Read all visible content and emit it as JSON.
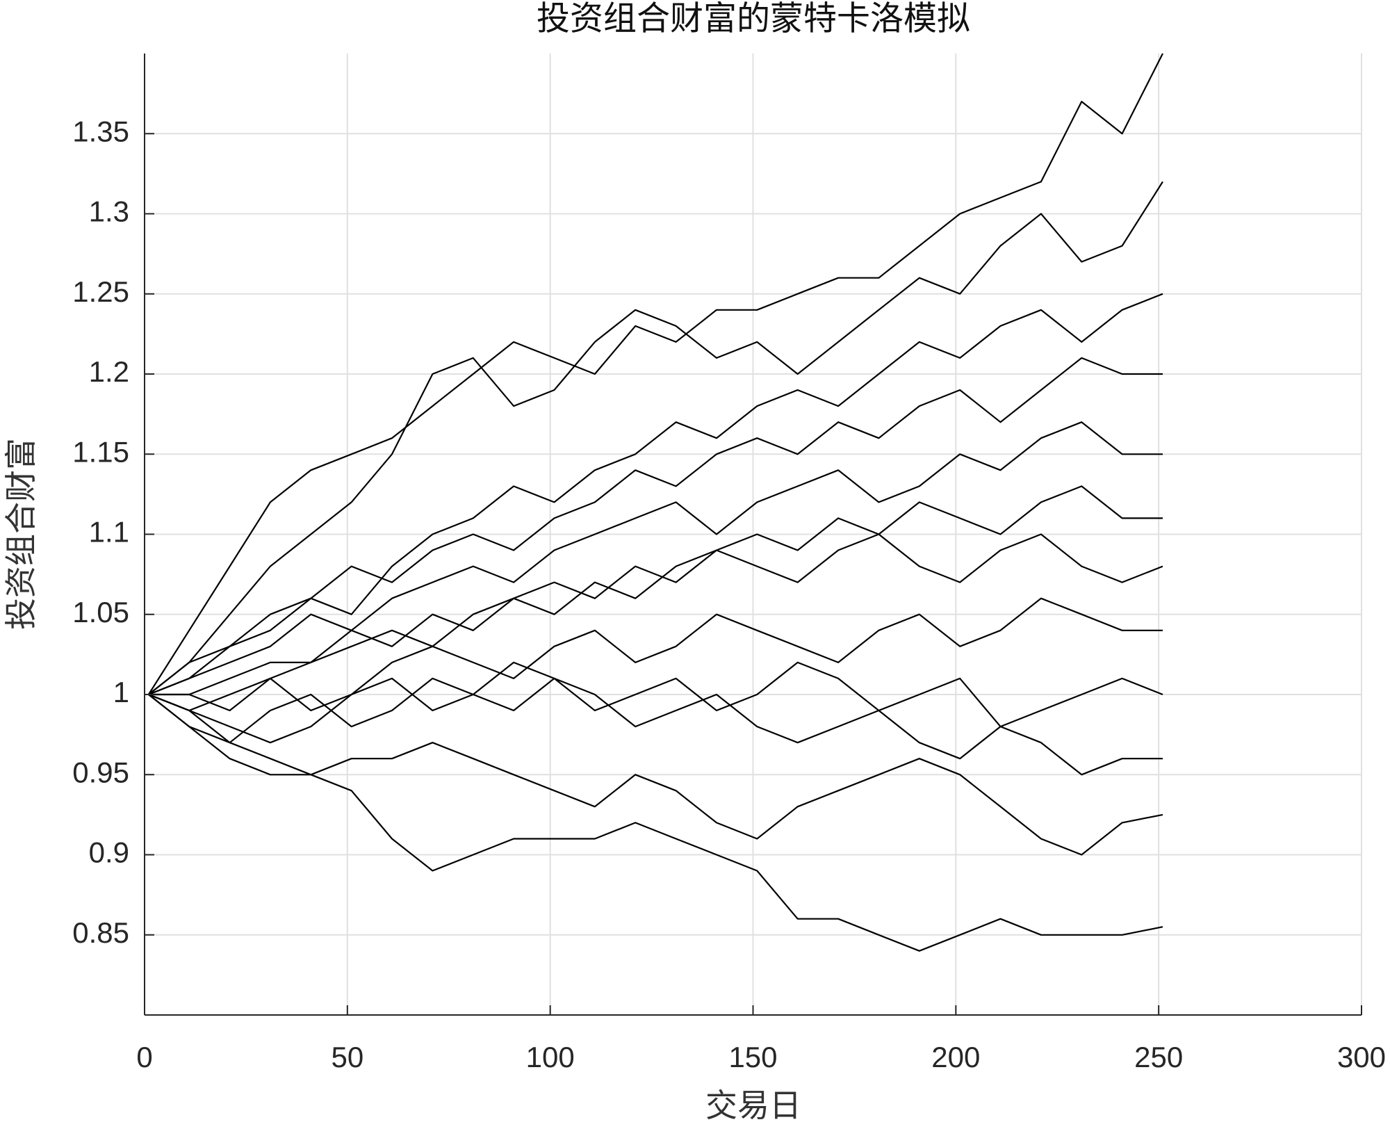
{
  "chart_data": {
    "type": "line",
    "title": "投资组合财富的蒙特卡洛模拟",
    "x_label": "交易日",
    "y_label": "投资组合财富",
    "x": [
      1,
      11,
      21,
      31,
      41,
      51,
      61,
      71,
      81,
      91,
      101,
      111,
      121,
      131,
      141,
      151,
      161,
      171,
      181,
      191,
      201,
      211,
      221,
      231,
      241,
      251
    ],
    "series": [
      {
        "color": "#000000",
        "values": [
          1,
          1.04,
          1.08,
          1.12,
          1.14,
          1.15,
          1.16,
          1.18,
          1.2,
          1.22,
          1.21,
          1.2,
          1.23,
          1.22,
          1.24,
          1.24,
          1.25,
          1.26,
          1.26,
          1.28,
          1.3,
          1.31,
          1.32,
          1.37,
          1.35,
          1.4
        ]
      },
      {
        "color": "#000000",
        "values": [
          1,
          0.99,
          0.97,
          0.96,
          0.95,
          0.94,
          0.91,
          0.89,
          0.9,
          0.91,
          0.91,
          0.91,
          0.92,
          0.91,
          0.9,
          0.89,
          0.86,
          0.86,
          0.85,
          0.84,
          0.85,
          0.86,
          0.85,
          0.85,
          0.85,
          0.855
        ]
      },
      {
        "color": "#000000",
        "values": [
          1,
          0.98,
          0.96,
          0.95,
          0.95,
          0.96,
          0.96,
          0.97,
          0.96,
          0.95,
          0.94,
          0.93,
          0.95,
          0.94,
          0.92,
          0.91,
          0.93,
          0.94,
          0.95,
          0.96,
          0.95,
          0.93,
          0.91,
          0.9,
          0.92,
          0.925
        ]
      },
      {
        "color": "#000000",
        "values": [
          1,
          1.02,
          1.05,
          1.08,
          1.1,
          1.12,
          1.15,
          1.2,
          1.21,
          1.18,
          1.19,
          1.22,
          1.24,
          1.23,
          1.21,
          1.22,
          1.2,
          1.22,
          1.24,
          1.26,
          1.25,
          1.28,
          1.3,
          1.27,
          1.28,
          1.32
        ]
      },
      {
        "color": "#000000",
        "values": [
          1,
          1.01,
          1.02,
          1.03,
          1.05,
          1.04,
          1.06,
          1.07,
          1.08,
          1.07,
          1.09,
          1.1,
          1.11,
          1.12,
          1.1,
          1.12,
          1.13,
          1.14,
          1.12,
          1.13,
          1.15,
          1.14,
          1.16,
          1.17,
          1.15,
          1.15
        ]
      },
      {
        "color": "#000000",
        "values": [
          1,
          1,
          1.01,
          1.02,
          1.02,
          1.03,
          1.04,
          1.03,
          1.05,
          1.06,
          1.05,
          1.07,
          1.06,
          1.08,
          1.09,
          1.08,
          1.07,
          1.09,
          1.1,
          1.08,
          1.07,
          1.09,
          1.1,
          1.08,
          1.07,
          1.08
        ]
      },
      {
        "color": "#000000",
        "values": [
          1,
          0.99,
          1,
          1.01,
          0.99,
          1,
          1.02,
          1.03,
          1.02,
          1.01,
          1.03,
          1.04,
          1.02,
          1.03,
          1.05,
          1.04,
          1.03,
          1.02,
          1.04,
          1.05,
          1.03,
          1.04,
          1.06,
          1.05,
          1.04,
          1.04
        ]
      },
      {
        "color": "#000000",
        "values": [
          1,
          1.02,
          1.03,
          1.05,
          1.06,
          1.05,
          1.08,
          1.1,
          1.11,
          1.13,
          1.12,
          1.14,
          1.15,
          1.17,
          1.16,
          1.18,
          1.19,
          1.18,
          1.2,
          1.22,
          1.21,
          1.23,
          1.24,
          1.22,
          1.24,
          1.25
        ]
      },
      {
        "color": "#000000",
        "values": [
          1,
          0.98,
          0.97,
          0.99,
          1,
          0.98,
          0.99,
          1.01,
          1,
          0.99,
          1.01,
          1,
          0.98,
          0.99,
          1,
          0.98,
          0.97,
          0.98,
          0.99,
          0.97,
          0.96,
          0.98,
          0.97,
          0.95,
          0.96,
          0.96
        ]
      },
      {
        "color": "#000000",
        "values": [
          1,
          1.01,
          1.03,
          1.04,
          1.06,
          1.08,
          1.07,
          1.09,
          1.1,
          1.09,
          1.11,
          1.12,
          1.14,
          1.13,
          1.15,
          1.16,
          1.15,
          1.17,
          1.16,
          1.18,
          1.19,
          1.17,
          1.19,
          1.21,
          1.2,
          1.2
        ]
      },
      {
        "color": "#000000",
        "values": [
          1,
          1,
          0.99,
          1.01,
          1.02,
          1.04,
          1.03,
          1.05,
          1.04,
          1.06,
          1.07,
          1.06,
          1.08,
          1.07,
          1.09,
          1.1,
          1.09,
          1.11,
          1.1,
          1.12,
          1.11,
          1.1,
          1.12,
          1.13,
          1.11,
          1.11
        ]
      },
      {
        "color": "#000000",
        "values": [
          1,
          0.99,
          0.98,
          0.97,
          0.98,
          1,
          1.01,
          0.99,
          1,
          1.02,
          1.01,
          0.99,
          1,
          1.01,
          0.99,
          1,
          1.02,
          1.01,
          0.99,
          1,
          1.01,
          0.98,
          0.99,
          1,
          1.01,
          1
        ]
      }
    ],
    "xlim": [
      0,
      300
    ],
    "ylim": [
      0.8,
      1.4
    ],
    "xticks": [
      0,
      50,
      100,
      150,
      200,
      250,
      300
    ],
    "yticks": [
      0.85,
      0.9,
      0.95,
      1,
      1.05,
      1.1,
      1.15,
      1.2,
      1.25,
      1.3,
      1.35
    ],
    "grid": true
  }
}
